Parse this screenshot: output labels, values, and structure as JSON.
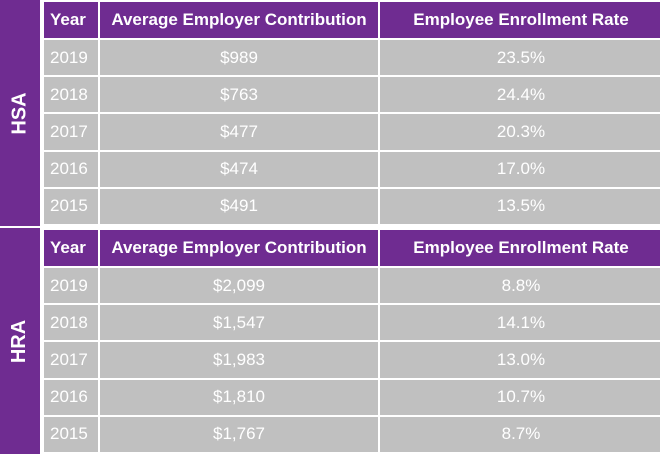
{
  "headers": {
    "year": "Year",
    "contribution": "Average Employer Contribution",
    "rate": "Employee Enrollment Rate"
  },
  "hsa": {
    "label": "HSA",
    "rows": [
      {
        "year": "2019",
        "contribution": "$989",
        "rate": "23.5%"
      },
      {
        "year": "2018",
        "contribution": "$763",
        "rate": "24.4%"
      },
      {
        "year": "2017",
        "contribution": "$477",
        "rate": "20.3%"
      },
      {
        "year": "2016",
        "contribution": "$474",
        "rate": "17.0%"
      },
      {
        "year": "2015",
        "contribution": "$491",
        "rate": "13.5%"
      }
    ]
  },
  "hra": {
    "label": "HRA",
    "rows": [
      {
        "year": "2019",
        "contribution": "$2,099",
        "rate": "8.8%"
      },
      {
        "year": "2018",
        "contribution": "$1,547",
        "rate": "14.1%"
      },
      {
        "year": "2017",
        "contribution": "$1,983",
        "rate": "13.0%"
      },
      {
        "year": "2016",
        "contribution": "$1,810",
        "rate": "10.7%"
      },
      {
        "year": "2015",
        "contribution": "$1,767",
        "rate": "8.7%"
      }
    ]
  },
  "colors": {
    "header_bg": "#6f2c91",
    "cell_bg": "#c0c0c0",
    "text": "#ffffff"
  }
}
